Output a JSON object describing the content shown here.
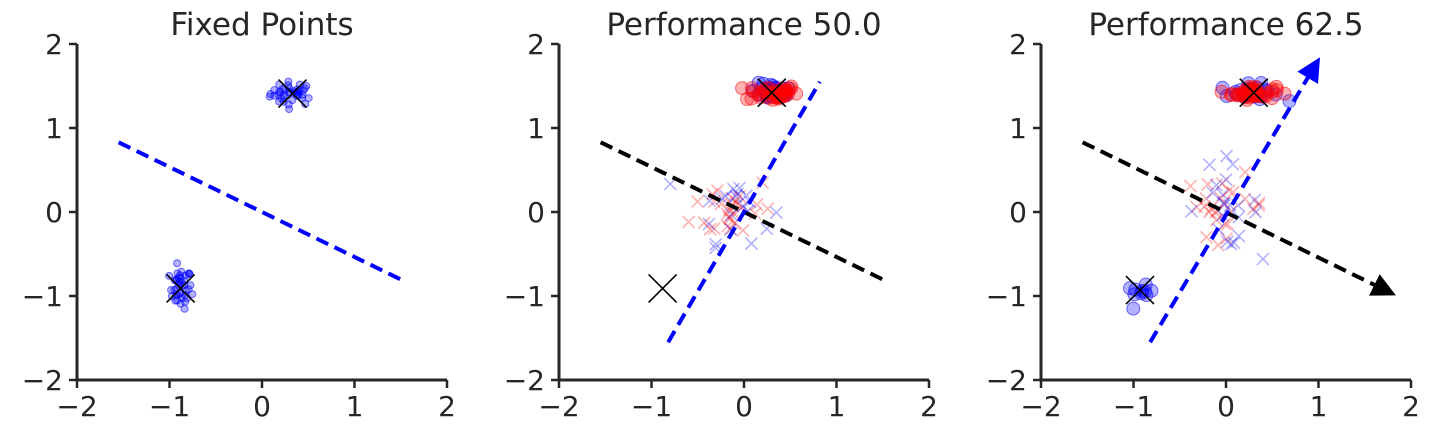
{
  "chart_data": [
    {
      "type": "scatter",
      "title": "Fixed Points",
      "xlim": [
        -2,
        2
      ],
      "ylim": [
        -2,
        2
      ],
      "xticks": [
        "−2",
        "−1",
        "0",
        "1",
        "2"
      ],
      "yticks": [
        "−2",
        "−1",
        "0",
        "1",
        "2"
      ],
      "grid": false,
      "clusters": [
        {
          "color": "#0000ff",
          "marker": "circle",
          "center": [
            0.33,
            1.41
          ],
          "spread": [
            0.12,
            0.07
          ],
          "count": 40
        },
        {
          "color": "#0000ff",
          "marker": "circle",
          "center": [
            -0.88,
            -0.91
          ],
          "spread": [
            0.06,
            0.12
          ],
          "count": 40
        }
      ],
      "big_markers": [
        {
          "color": "#000000",
          "marker": "x",
          "point": [
            0.33,
            1.41
          ]
        },
        {
          "color": "#000000",
          "marker": "x",
          "point": [
            -0.88,
            -0.91
          ]
        }
      ],
      "lines": [
        {
          "color": "#0000ff",
          "style": "dashed",
          "from": [
            -1.55,
            0.83
          ],
          "to": [
            1.55,
            -0.83
          ],
          "arrow": false
        }
      ]
    },
    {
      "type": "scatter",
      "title": "Performance 50.0",
      "xlim": [
        -2,
        2
      ],
      "ylim": [
        -2,
        2
      ],
      "xticks": [
        "−2",
        "−1",
        "0",
        "1",
        "2"
      ],
      "yticks": [
        "−2",
        "−1",
        "0",
        "1",
        "2"
      ],
      "grid": false,
      "clusters": [
        {
          "color": "#0000ff",
          "marker": "circle",
          "center": [
            0.3,
            1.43
          ],
          "spread": [
            0.12,
            0.05
          ],
          "count": 25
        },
        {
          "color": "#ff0000",
          "marker": "circle",
          "center": [
            0.3,
            1.42
          ],
          "spread": [
            0.14,
            0.05
          ],
          "count": 40
        },
        {
          "color": "#ff0000",
          "marker": "x",
          "center": [
            -0.12,
            0.05
          ],
          "spread": [
            0.22,
            0.2
          ],
          "count": 28
        },
        {
          "color": "#0000ff",
          "marker": "x",
          "center": [
            -0.1,
            0.08
          ],
          "spread": [
            0.2,
            0.22
          ],
          "count": 20
        }
      ],
      "big_markers": [
        {
          "color": "#000000",
          "marker": "x",
          "point": [
            0.3,
            1.42
          ]
        },
        {
          "color": "#000000",
          "marker": "x",
          "point": [
            -0.88,
            -0.91
          ]
        }
      ],
      "lines": [
        {
          "color": "#000000",
          "style": "dashed",
          "from": [
            -1.55,
            0.83
          ],
          "to": [
            1.55,
            -0.83
          ],
          "arrow": false
        },
        {
          "color": "#0000ff",
          "style": "dashed",
          "from": [
            -0.82,
            -1.55
          ],
          "to": [
            0.82,
            1.55
          ],
          "arrow": false
        }
      ]
    },
    {
      "type": "scatter",
      "title": "Performance 62.5",
      "xlim": [
        -2,
        2
      ],
      "ylim": [
        -2,
        2
      ],
      "xticks": [
        "−2",
        "−1",
        "0",
        "1",
        "2"
      ],
      "yticks": [
        "−2",
        "−1",
        "0",
        "1",
        "2"
      ],
      "grid": false,
      "clusters": [
        {
          "color": "#0000ff",
          "marker": "circle",
          "center": [
            0.25,
            1.42
          ],
          "spread": [
            0.16,
            0.05
          ],
          "count": 25
        },
        {
          "color": "#ff0000",
          "marker": "circle",
          "center": [
            0.3,
            1.42
          ],
          "spread": [
            0.12,
            0.04
          ],
          "count": 40
        },
        {
          "color": "#0000ff",
          "marker": "circle",
          "center": [
            -0.93,
            -0.98
          ],
          "spread": [
            0.07,
            0.05
          ],
          "count": 10
        },
        {
          "color": "#ff0000",
          "marker": "x",
          "center": [
            0.0,
            0.08
          ],
          "spread": [
            0.22,
            0.18
          ],
          "count": 26
        },
        {
          "color": "#0000ff",
          "marker": "x",
          "center": [
            -0.05,
            0.08
          ],
          "spread": [
            0.2,
            0.25
          ],
          "count": 22
        }
      ],
      "big_markers": [
        {
          "color": "#000000",
          "marker": "x",
          "point": [
            0.3,
            1.42
          ]
        },
        {
          "color": "#000000",
          "marker": "x",
          "point": [
            -0.93,
            -0.93
          ]
        }
      ],
      "lines": [
        {
          "color": "#000000",
          "style": "dashed",
          "from": [
            -1.55,
            0.83
          ],
          "to": [
            1.72,
            -0.93
          ],
          "arrow": true
        },
        {
          "color": "#0000ff",
          "style": "dashed",
          "from": [
            -0.82,
            -1.55
          ],
          "to": [
            0.95,
            1.72
          ],
          "arrow": true
        }
      ]
    }
  ]
}
